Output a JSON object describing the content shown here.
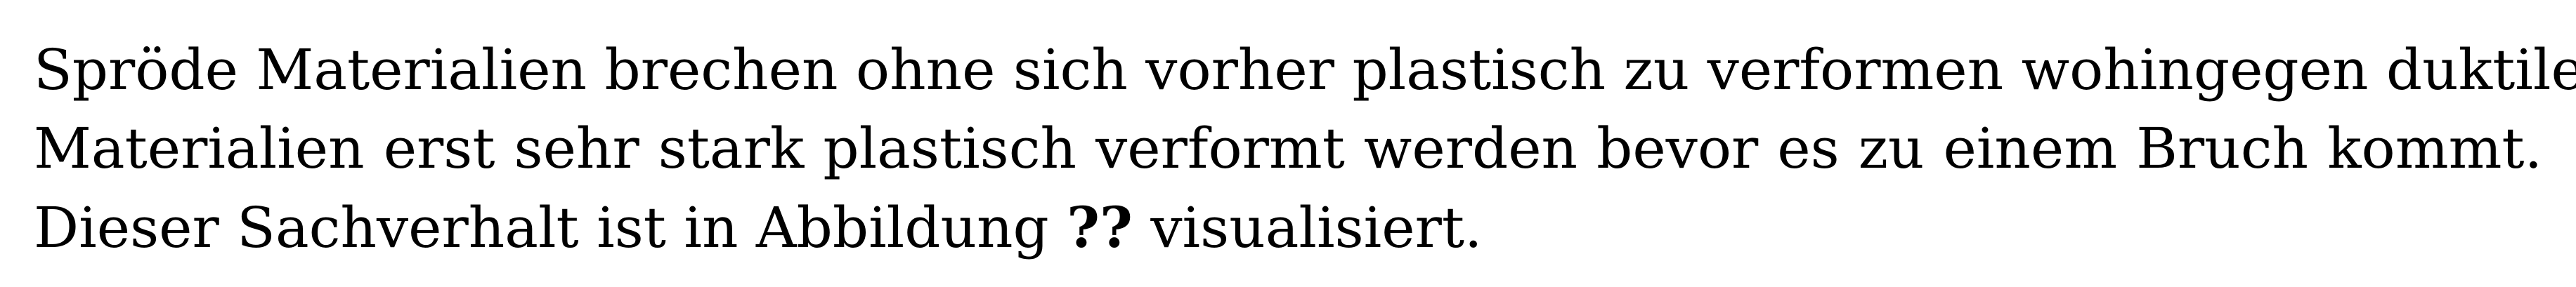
{
  "paragraph": {
    "line1": "Spröde Materialien brechen ohne sich vorher plastisch zu verformen wohingegen duktile",
    "line2": "Materialien erst sehr stark plastisch verformt werden bevor es zu einem Bruch kommt.",
    "line3_before": "Dieser Sachverhalt ist in Abbildung",
    "line3_ref": "??",
    "line3_after": "visualisiert."
  }
}
